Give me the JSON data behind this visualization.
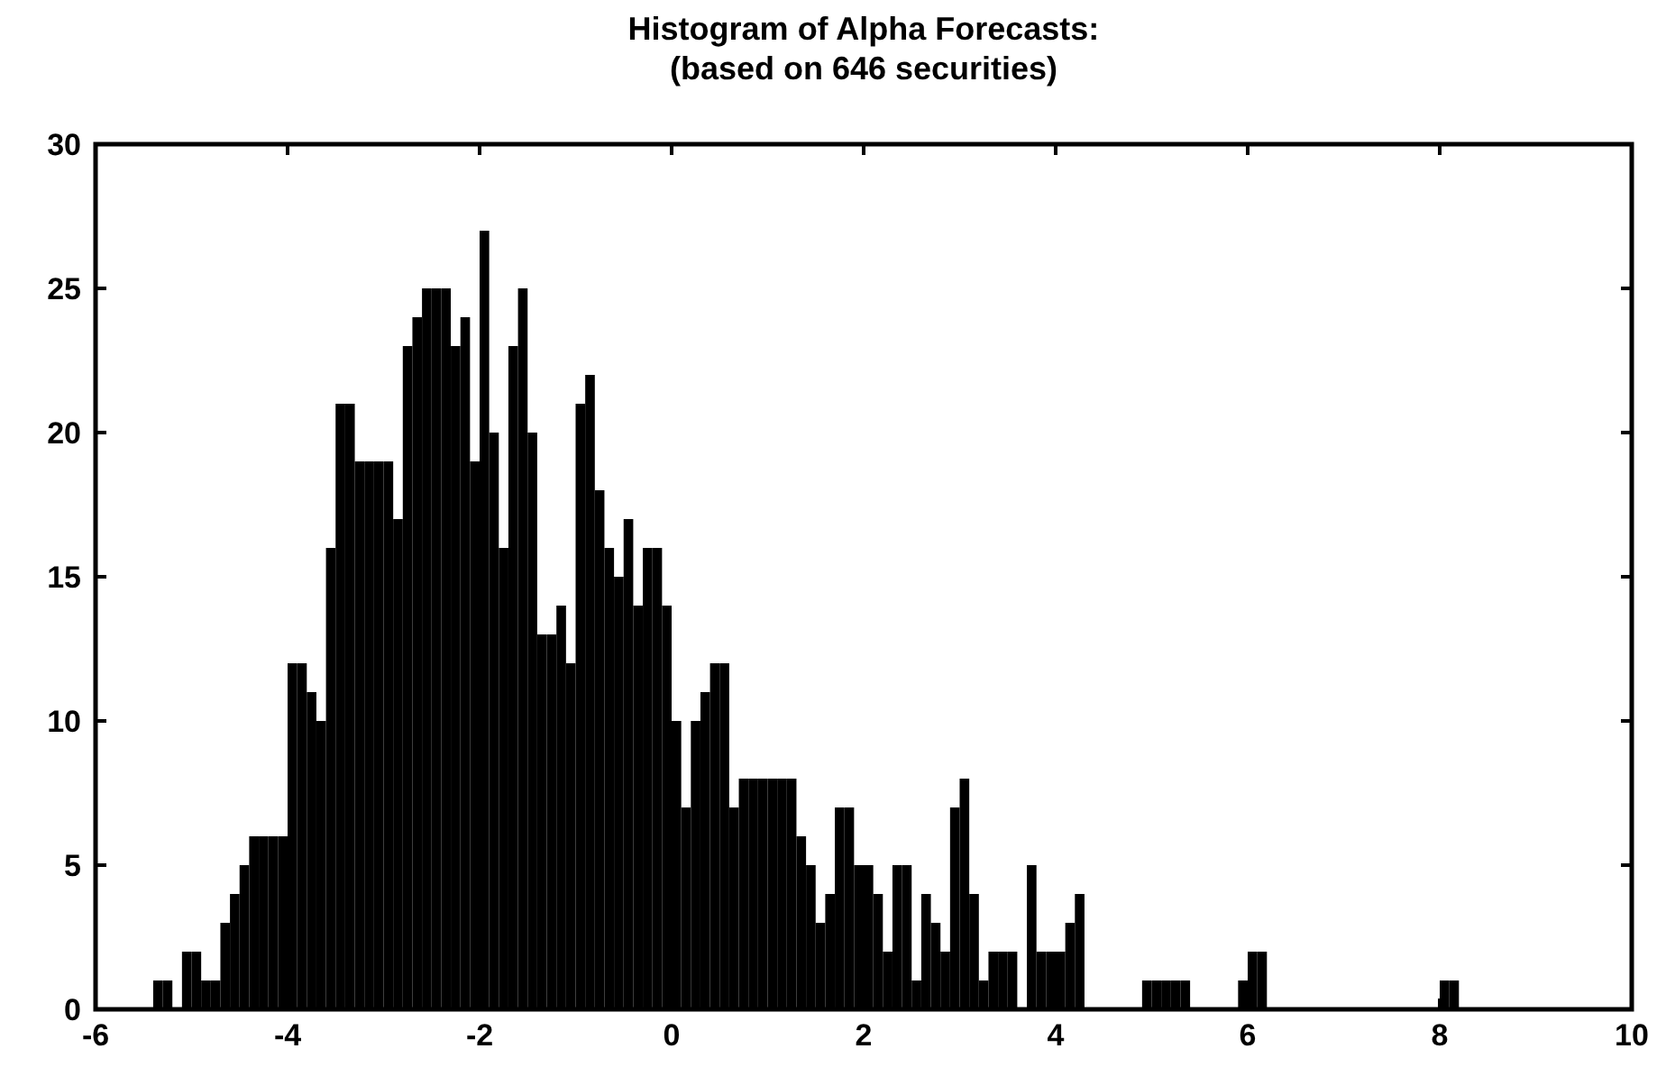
{
  "chart_data": {
    "type": "histogram",
    "title": "Histogram of Alpha Forecasts:",
    "subtitle": "(based on 646 securities)",
    "bins": [
      -5.4,
      -5.3,
      -5.2,
      -5.1,
      -5.0,
      -4.9,
      -4.8,
      -4.7,
      -4.6,
      -4.5,
      -4.4,
      -4.3,
      -4.2,
      -4.1,
      -4.0,
      -3.9,
      -3.8,
      -3.7,
      -3.6,
      -3.5,
      -3.4,
      -3.3,
      -3.2,
      -3.1,
      -3.0,
      -2.9,
      -2.8,
      -2.7,
      -2.6,
      -2.5,
      -2.4,
      -2.3,
      -2.2,
      -2.1,
      -2.0,
      -1.9,
      -1.8,
      -1.7,
      -1.6,
      -1.5,
      -1.4,
      -1.3,
      -1.2,
      -1.1,
      -1.0,
      -0.9,
      -0.8,
      -0.7,
      -0.6,
      -0.5,
      -0.4,
      -0.3,
      -0.2,
      -0.1,
      0.0,
      0.1,
      0.2,
      0.3,
      0.4,
      0.5,
      0.6,
      0.7,
      0.8,
      0.9,
      1.0,
      1.1,
      1.2,
      1.3,
      1.4,
      1.5,
      1.6,
      1.7,
      1.8,
      1.9,
      2.0,
      2.1,
      2.2,
      2.3,
      2.4,
      2.5,
      2.6,
      2.7,
      2.8,
      2.9,
      3.0,
      3.1,
      3.2,
      3.3,
      3.4,
      3.5,
      3.6,
      3.7,
      3.8,
      3.9,
      4.0,
      4.1,
      4.2,
      4.3,
      4.4,
      4.5,
      4.6,
      4.7,
      4.8,
      4.9,
      5.0,
      5.1,
      5.2,
      5.3,
      5.4,
      5.5,
      5.6,
      5.7,
      5.8,
      5.9,
      6.0,
      6.1,
      6.2,
      6.3,
      6.4,
      6.5,
      6.6,
      6.7,
      6.8,
      6.9,
      7.0,
      7.1,
      7.2,
      7.3,
      7.4,
      7.5,
      7.6,
      7.7,
      7.8,
      7.9,
      8.0,
      8.1,
      8.2
    ],
    "values": [
      1,
      1,
      0,
      2,
      2,
      1,
      1,
      3,
      4,
      5,
      6,
      6,
      6,
      6,
      12,
      12,
      11,
      10,
      16,
      21,
      21,
      19,
      19,
      19,
      19,
      17,
      23,
      24,
      25,
      25,
      25,
      23,
      24,
      19,
      27,
      20,
      16,
      23,
      25,
      20,
      13,
      13,
      14,
      12,
      21,
      22,
      18,
      16,
      15,
      17,
      14,
      16,
      16,
      14,
      10,
      7,
      10,
      11,
      12,
      12,
      7,
      8,
      8,
      8,
      8,
      8,
      8,
      6,
      5,
      3,
      4,
      7,
      7,
      5,
      5,
      4,
      2,
      5,
      5,
      1,
      4,
      3,
      2,
      7,
      8,
      4,
      1,
      2,
      2,
      2,
      0,
      5,
      2,
      2,
      2,
      3,
      4,
      0,
      0,
      0,
      0,
      0,
      0,
      1,
      1,
      1,
      1,
      1,
      0,
      0,
      0,
      0,
      0,
      1,
      2,
      2,
      0,
      0,
      0,
      0,
      0,
      0,
      0,
      0,
      0,
      0,
      0,
      0,
      0,
      0,
      0,
      0,
      0,
      0,
      1,
      1
    ],
    "color": "#000000",
    "xlim": [
      -6,
      10
    ],
    "xticks": [
      -6,
      -4,
      -2,
      0,
      2,
      4,
      6,
      8,
      10
    ],
    "ylim": [
      0,
      30
    ],
    "yticks": [
      0,
      5,
      10,
      15,
      20,
      25,
      30
    ],
    "grid": false
  }
}
